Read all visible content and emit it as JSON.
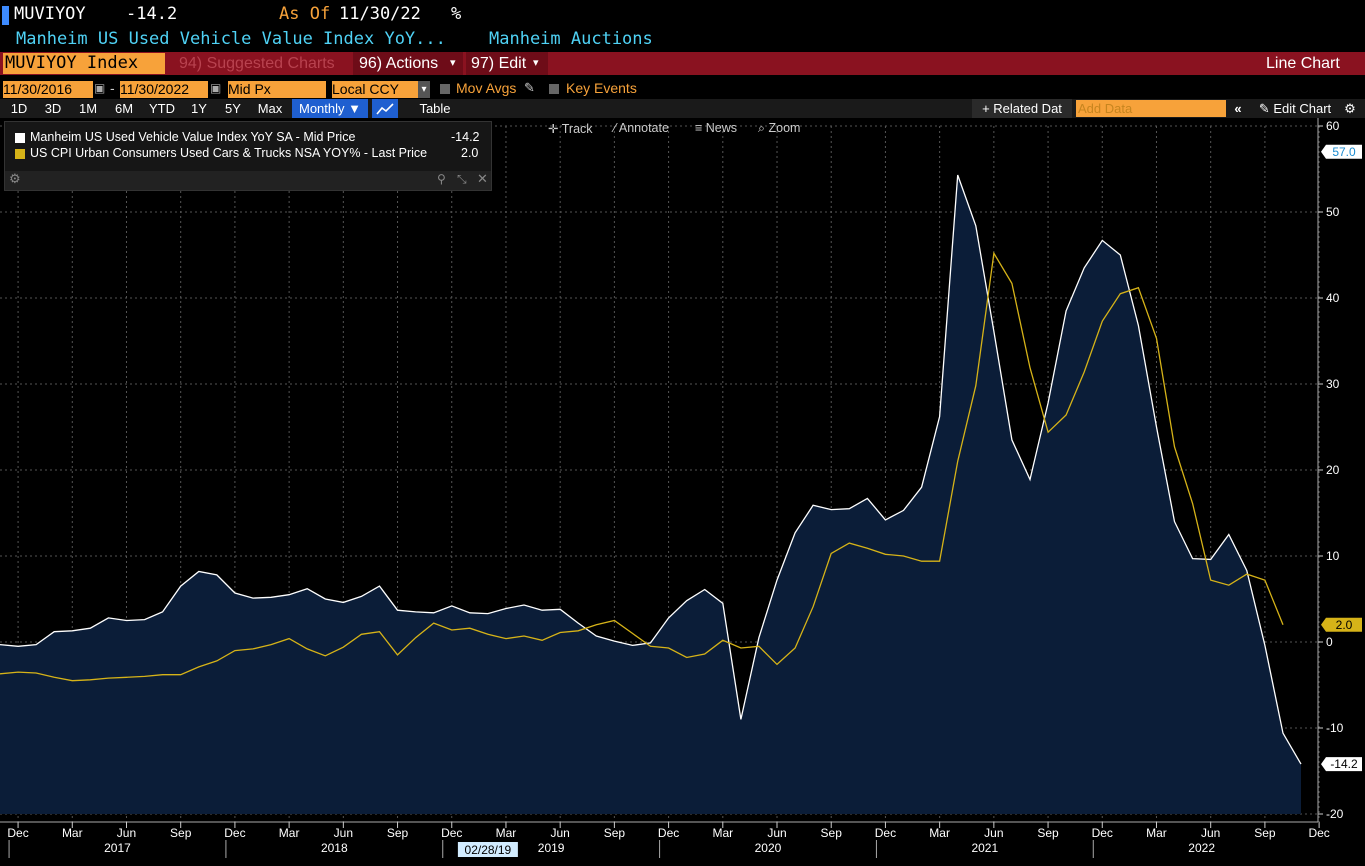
{
  "header": {
    "ticker": "MUVIYOY",
    "last": "-14.2",
    "as_of_label": "As Of",
    "as_of_date": "11/30/22",
    "unit": "%",
    "description": "Manheim US Used Vehicle Value Index YoY...",
    "source": "Manheim Auctions"
  },
  "toolbar": {
    "security": "MUVIYOY Index",
    "suggested": "94) Suggested Charts",
    "actions": "96) Actions",
    "edit": "97) Edit",
    "chart_type": "Line Chart",
    "start_date": "11/30/2016",
    "end_date": "11/30/2022",
    "date_sep": "-",
    "price_field": "Mid Px",
    "currency": "Local CCY",
    "mov_avgs": "Mov Avgs",
    "key_events": "Key Events",
    "ranges": [
      "1D",
      "3D",
      "1M",
      "6M",
      "YTD",
      "1Y",
      "5Y",
      "Max"
    ],
    "period": "Monthly ▼",
    "table": "Table",
    "related": "+ Related Dat",
    "add_data_placeholder": "Add Data",
    "edit_chart": "Edit Chart",
    "track": "Track",
    "annotate": "Annotate",
    "news": "News",
    "zoom": "Zoom"
  },
  "legend": {
    "series": [
      {
        "label": "Manheim US Used Vehicle Value Index YoY SA - Mid Price",
        "value": "-14.2"
      },
      {
        "label": "US CPI Urban Consumers Used Cars & Trucks NSA YOY% - Last Price",
        "value": "2.0"
      }
    ]
  },
  "colors": {
    "background": "#000000",
    "area_fill": "#0b1d38",
    "series1": "#ffffff",
    "series2": "#d6b318",
    "accent_orange": "#f7a23a",
    "header_bar": "#8a1220",
    "grid": "#555555"
  },
  "chart_data": {
    "type": "line",
    "frequency": "monthly",
    "x_start": "2016-11",
    "x_end": "2022-11",
    "ylim": [
      -20,
      60
    ],
    "y_ticks": [
      -20,
      -10,
      0,
      10,
      20,
      30,
      40,
      50,
      60
    ],
    "y_axis_side": "right",
    "grid": true,
    "x_month_labels": [
      "Dec",
      "Mar",
      "Jun",
      "Sep",
      "Dec",
      "Mar",
      "Jun",
      "Sep",
      "Dec",
      "Mar",
      "Jun",
      "Sep",
      "Dec",
      "Mar",
      "Jun",
      "Sep",
      "Dec",
      "Mar",
      "Jun",
      "Sep",
      "Dec",
      "Mar",
      "Jun",
      "Sep",
      "Dec"
    ],
    "x_year_labels": [
      "2017",
      "2018",
      "2019",
      "2020",
      "2021",
      "2022"
    ],
    "crosshair_date": "02/28/19",
    "markers": [
      {
        "label": "57.0",
        "value": 57.0
      },
      {
        "label": "2.0",
        "value": 2.0
      },
      {
        "label": "-14.2",
        "value": -14.2
      }
    ],
    "series": [
      {
        "name": "Manheim US Used Vehicle Value Index YoY SA - Mid Price",
        "area": true,
        "values": [
          -0.3,
          -0.5,
          -0.3,
          1.2,
          1.3,
          1.6,
          2.8,
          2.5,
          2.6,
          3.5,
          6.5,
          8.2,
          7.8,
          5.7,
          5.1,
          5.2,
          5.5,
          6.2,
          5.0,
          4.6,
          5.3,
          6.5,
          3.7,
          3.5,
          3.4,
          4.2,
          3.4,
          3.3,
          3.9,
          4.3,
          3.7,
          3.8,
          2.2,
          0.7,
          0.1,
          -0.4,
          -0.1,
          2.8,
          4.8,
          6.1,
          4.5,
          -9.0,
          0.5,
          7.2,
          12.7,
          15.9,
          15.4,
          15.5,
          16.7,
          14.2,
          15.3,
          18.0,
          26.2,
          54.3,
          48.4,
          36.1,
          23.5,
          18.9,
          27.8,
          38.5,
          43.5,
          46.7,
          45.0,
          36.8,
          25.0,
          14.0,
          9.7,
          9.6,
          12.5,
          8.3,
          -0.4,
          -10.6,
          -14.2
        ]
      },
      {
        "name": "US CPI Urban Consumers Used Cars & Trucks NSA YOY% - Last Price",
        "area": false,
        "values": [
          -3.7,
          -3.5,
          -3.6,
          -4.1,
          -4.5,
          -4.4,
          -4.2,
          -4.1,
          -4.0,
          -3.8,
          -3.8,
          -2.9,
          -2.2,
          -1.0,
          -0.8,
          -0.3,
          0.4,
          -0.8,
          -1.6,
          -0.6,
          0.9,
          1.2,
          -1.5,
          0.5,
          2.2,
          1.4,
          1.6,
          0.9,
          0.4,
          0.7,
          0.2,
          1.1,
          1.3,
          2.0,
          2.5,
          1.0,
          -0.5,
          -0.7,
          -1.8,
          -1.4,
          0.2,
          -0.7,
          -0.5,
          -2.6,
          -0.7,
          4.1,
          10.3,
          11.5,
          10.9,
          10.2,
          10.0,
          9.4,
          9.4,
          21.0,
          29.8,
          45.2,
          41.7,
          31.9,
          24.4,
          26.4,
          31.4,
          37.3,
          40.5,
          41.2,
          35.3,
          22.7,
          16.1,
          7.2,
          6.6,
          7.9,
          7.2,
          2.0
        ]
      }
    ]
  }
}
